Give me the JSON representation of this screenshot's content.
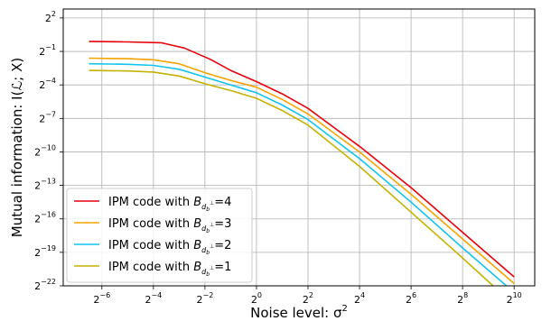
{
  "chart_data": {
    "type": "line",
    "xlabel": "Noise level: σ²",
    "ylabel": "Mutual information: I(ℒ; X)",
    "x_scale": "log2",
    "y_scale": "log2",
    "xlim_log2": [
      -7.5,
      10.8
    ],
    "ylim_log2": [
      -22,
      2.8
    ],
    "x_ticks": [
      {
        "base": "2",
        "exp": "−6",
        "log2": -6
      },
      {
        "base": "2",
        "exp": "−4",
        "log2": -4
      },
      {
        "base": "2",
        "exp": "−2",
        "log2": -2
      },
      {
        "base": "2",
        "exp": "0",
        "log2": 0
      },
      {
        "base": "2",
        "exp": "2",
        "log2": 2
      },
      {
        "base": "2",
        "exp": "4",
        "log2": 4
      },
      {
        "base": "2",
        "exp": "6",
        "log2": 6
      },
      {
        "base": "2",
        "exp": "8",
        "log2": 8
      },
      {
        "base": "2",
        "exp": "10",
        "log2": 10
      }
    ],
    "y_ticks": [
      {
        "base": "2",
        "exp": "2",
        "log2": 2
      },
      {
        "base": "2",
        "exp": "−1",
        "log2": -1
      },
      {
        "base": "2",
        "exp": "−4",
        "log2": -4
      },
      {
        "base": "2",
        "exp": "−7",
        "log2": -7
      },
      {
        "base": "2",
        "exp": "−10",
        "log2": -10
      },
      {
        "base": "2",
        "exp": "−13",
        "log2": -13
      },
      {
        "base": "2",
        "exp": "−16",
        "log2": -16
      },
      {
        "base": "2",
        "exp": "−19",
        "log2": -19
      },
      {
        "base": "2",
        "exp": "−22",
        "log2": -22
      }
    ],
    "grid": true,
    "legend_position": "lower-left",
    "series": [
      {
        "name": "IPM code with B=4",
        "legend_prefix": "IPM code with ",
        "legend_value": "4",
        "color": "#e8000b",
        "x_log2": [
          -6.5,
          -5,
          -3.7,
          -2.8,
          -1.8,
          -1,
          0,
          1,
          2,
          4,
          6,
          8,
          10
        ],
        "y_log2": [
          -0.1,
          -0.15,
          -0.22,
          -0.7,
          -1.7,
          -2.7,
          -3.7,
          -4.8,
          -6.1,
          -9.5,
          -13.2,
          -17.2,
          -21.2
        ]
      },
      {
        "name": "IPM code with B=3",
        "legend_prefix": "IPM code with ",
        "legend_value": "3",
        "color": "#f5a300",
        "x_log2": [
          -6.5,
          -5,
          -4,
          -3,
          -2,
          -1,
          0,
          1,
          2,
          4,
          6,
          8,
          10
        ],
        "y_log2": [
          -1.6,
          -1.65,
          -1.75,
          -2.1,
          -2.9,
          -3.6,
          -4.2,
          -5.3,
          -6.6,
          -10.0,
          -13.8,
          -17.8,
          -21.8
        ]
      },
      {
        "name": "IPM code with B=2",
        "legend_prefix": "IPM code with ",
        "legend_value": "2",
        "color": "#11c4ee",
        "x_log2": [
          -6.5,
          -5,
          -4,
          -3,
          -2,
          -1,
          0,
          1,
          2,
          4,
          6,
          8,
          10
        ],
        "y_log2": [
          -2.1,
          -2.15,
          -2.25,
          -2.6,
          -3.3,
          -4.0,
          -4.7,
          -5.8,
          -7.1,
          -10.6,
          -14.5,
          -18.6,
          -22.6
        ]
      },
      {
        "name": "IPM code with B=1",
        "legend_prefix": "IPM code with ",
        "legend_value": "1",
        "color": "#c4b200",
        "x_log2": [
          -6.5,
          -5,
          -4,
          -3,
          -2,
          -1,
          0,
          1,
          2,
          4,
          6,
          8,
          9.9
        ],
        "y_log2": [
          -2.7,
          -2.75,
          -2.85,
          -3.2,
          -3.9,
          -4.5,
          -5.2,
          -6.3,
          -7.6,
          -11.3,
          -15.4,
          -19.5,
          -23.5
        ]
      }
    ]
  }
}
